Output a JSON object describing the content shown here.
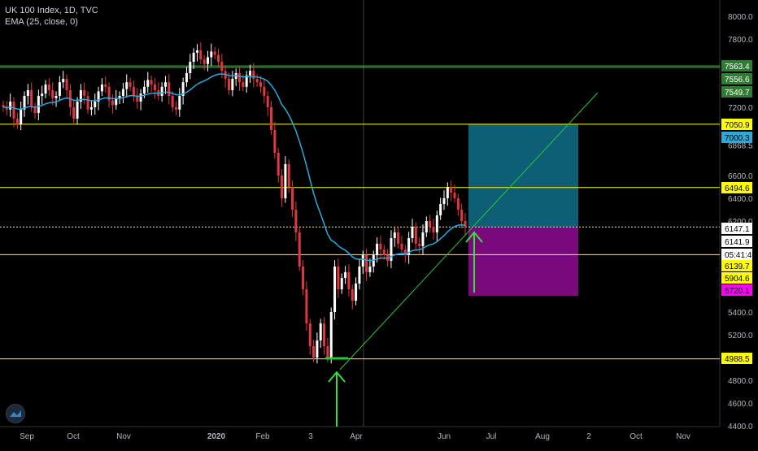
{
  "header": {
    "title": "UK 100 Index, 1D, TVC",
    "indicator": "EMA (25, close, 0)"
  },
  "colors": {
    "background": "#000000",
    "candle_up": "#ffffff",
    "candle_down": "#e0383e",
    "ema_line": "#2aa9dd",
    "yellow_line": "#ffff00",
    "green_line": "#4caf50",
    "trend_line": "#28c83c",
    "profit_zone": "#0e5f75",
    "loss_zone": "#7a0a7c",
    "arrow": "#33e03c"
  },
  "chart_data": {
    "type": "candlestick",
    "symbol": "UK 100 Index",
    "interval": "1D",
    "source": "TVC",
    "ylim": [
      4400,
      8200
    ],
    "x_labels": [
      "Sep",
      "Oct",
      "Nov",
      "2020",
      "Feb",
      "3",
      "Apr",
      "Jun",
      "Jul",
      "Aug",
      "2",
      "Oct",
      "Nov"
    ],
    "y_ticks": [
      8000,
      7800,
      7200,
      6868.5,
      6600,
      6400,
      6200,
      5400,
      5200,
      4800,
      4600,
      4400
    ],
    "price_levels": [
      {
        "label": "7563.4",
        "value": 7563.4,
        "color": "#4caf50",
        "badge_color": "#2e7d32"
      },
      {
        "label": "7556.6",
        "value": 7556.6,
        "color": "#4caf50",
        "badge_color": "#2e7d32"
      },
      {
        "label": "7549.7",
        "value": 7549.7,
        "color": "#4caf50",
        "badge_color": "#2e7d32"
      },
      {
        "label": "7050.9",
        "value": 7050.9,
        "color": "#ffff00",
        "badge_color": "#ffff00"
      },
      {
        "label": "7000.3",
        "value": 7000.3,
        "color": "#2aa9dd",
        "badge_color": "#2aa9dd"
      },
      {
        "label": "6494.6",
        "value": 6494.6,
        "color": "#ffff00",
        "badge_color": "#ffff00"
      },
      {
        "label": "6147.1",
        "value": 6147.1,
        "color": "#ffff00",
        "badge_color": "#ffffff"
      },
      {
        "label": "6141.9",
        "value": 6141.9,
        "color": "#ffffff",
        "badge_color": "#ffffff"
      },
      {
        "label": "05:41:40",
        "value": 6060,
        "color": "#ffffff",
        "badge_color": "#ffffff"
      },
      {
        "label": "6139.7",
        "value": 6139.7,
        "color": "#ffff00",
        "badge_color": "#ffff00"
      },
      {
        "label": "5904.6",
        "value": 5904.6,
        "color": "#ffff00",
        "badge_color": "#ffff00"
      },
      {
        "label": "5720.1",
        "value": 5720.1,
        "color": "#ff00ff",
        "badge_color": "#ff00ff"
      },
      {
        "label": "4988.5",
        "value": 4988.5,
        "color": "#ffff00",
        "badge_color": "#ffff00"
      }
    ],
    "ema_period": 25,
    "price_series": [
      7200,
      7180,
      7250,
      7100,
      7050,
      7180,
      7300,
      7350,
      7200,
      7150,
      7300,
      7320,
      7400,
      7350,
      7280,
      7300,
      7420,
      7450,
      7350,
      7200,
      7100,
      7250,
      7350,
      7300,
      7180,
      7200,
      7250,
      7340,
      7400,
      7380,
      7260,
      7220,
      7280,
      7300,
      7360,
      7420,
      7380,
      7300,
      7250,
      7320,
      7380,
      7440,
      7400,
      7350,
      7300,
      7380,
      7420,
      7300,
      7200,
      7180,
      7300,
      7420,
      7500,
      7600,
      7680,
      7700,
      7620,
      7580,
      7640,
      7690,
      7660,
      7600,
      7520,
      7450,
      7350,
      7450,
      7500,
      7420,
      7380,
      7480,
      7520,
      7450,
      7420,
      7380,
      7300,
      7200,
      7000,
      6800,
      6600,
      6400,
      6700,
      6500,
      6300,
      6100,
      5800,
      5600,
      5300,
      5100,
      5000,
      5150,
      5300,
      5100,
      5000,
      5400,
      5800,
      5600,
      5700,
      5750,
      5600,
      5500,
      5650,
      5800,
      5900,
      5750,
      5800,
      5900,
      6000,
      5950,
      5900,
      5850,
      6050,
      6100,
      6000,
      5950,
      5900,
      6050,
      6150,
      6000,
      5980,
      6100,
      6200,
      6150,
      6100,
      6250,
      6350,
      6400,
      6500,
      6450,
      6400,
      6300,
      6200,
      6147
    ]
  },
  "trade_setup": {
    "entry_label": "6147.1",
    "target_label": "7000.3",
    "stop_label": "5720.1"
  },
  "logo": {
    "name": "tradingview-logo-icon"
  }
}
